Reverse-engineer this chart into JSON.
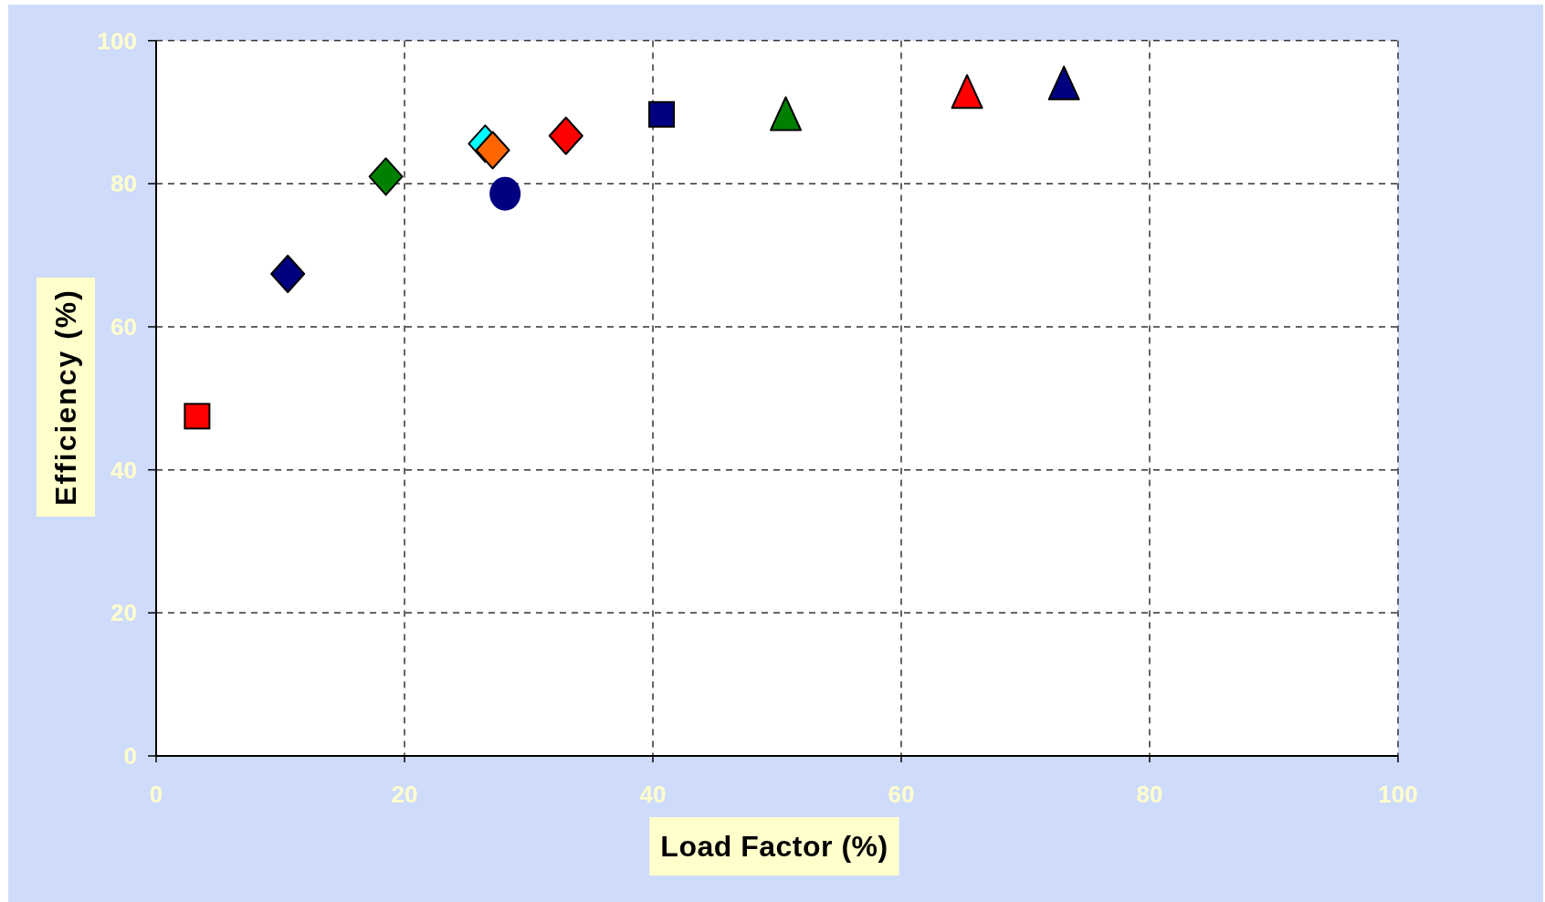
{
  "chart_data": {
    "type": "scatter",
    "xlabel": "Load Factor (%)",
    "ylabel": "Efficiency (%)",
    "xlim": [
      0,
      100
    ],
    "ylim": [
      0,
      100
    ],
    "xticks": [
      0,
      20,
      40,
      60,
      80,
      100
    ],
    "yticks": [
      0,
      20,
      40,
      60,
      80,
      100
    ],
    "grid": true,
    "series": [
      {
        "x": [
          3.3
        ],
        "values": [
          47.5
        ],
        "color": "#ff0000",
        "marker": "square"
      },
      {
        "x": [
          10.6
        ],
        "values": [
          67.4
        ],
        "color": "#000080",
        "marker": "diamond"
      },
      {
        "x": [
          18.5
        ],
        "values": [
          81.0
        ],
        "color": "#008000",
        "marker": "diamond"
      },
      {
        "x": [
          26.5
        ],
        "values": [
          85.6
        ],
        "color": "#00ffff",
        "marker": "diamond"
      },
      {
        "x": [
          27.1
        ],
        "values": [
          84.7
        ],
        "color": "#ff6600",
        "marker": "diamond"
      },
      {
        "x": [
          28.1
        ],
        "values": [
          78.6
        ],
        "color": "#000080",
        "marker": "circle"
      },
      {
        "x": [
          33.0
        ],
        "values": [
          86.7
        ],
        "color": "#ff0000",
        "marker": "diamond"
      },
      {
        "x": [
          40.7
        ],
        "values": [
          89.7
        ],
        "color": "#000080",
        "marker": "square"
      },
      {
        "x": [
          50.7
        ],
        "values": [
          89.8
        ],
        "color": "#008000",
        "marker": "triangle"
      },
      {
        "x": [
          65.3
        ],
        "values": [
          92.9
        ],
        "color": "#ff0000",
        "marker": "triangle"
      },
      {
        "x": [
          73.1
        ],
        "values": [
          94.1
        ],
        "color": "#000080",
        "marker": "triangle"
      }
    ]
  }
}
